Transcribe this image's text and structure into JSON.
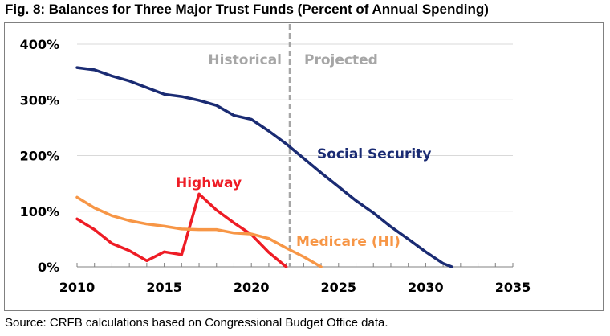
{
  "title": "Fig. 8: Balances for Three Major Trust Funds (Percent of Annual Spending)",
  "source": "Source: CRFB calculations based on Congressional Budget Office data.",
  "chart_data": {
    "type": "line",
    "title": "Fig. 8: Balances for Three Major Trust Funds (Percent of Annual Spending)",
    "xlim": [
      2010,
      2035
    ],
    "ylim": [
      0,
      400
    ],
    "x_ticks": [
      2010,
      2015,
      2020,
      2025,
      2030,
      2035
    ],
    "x_tick_labels": [
      "2010",
      "2015",
      "2020",
      "2025",
      "2030",
      "2035"
    ],
    "y_ticks": [
      0,
      100,
      200,
      300,
      400
    ],
    "y_tick_labels": [
      "0%",
      "100%",
      "200%",
      "300%",
      "400%"
    ],
    "grid": "horizontal",
    "divider_x": 2022.2,
    "annotations": {
      "historical": "Historical",
      "projected": "Projected"
    },
    "series": [
      {
        "name": "Social Security",
        "color": "#1a2b73",
        "x": [
          2010,
          2011,
          2012,
          2013,
          2014,
          2015,
          2016,
          2017,
          2018,
          2019,
          2020,
          2021,
          2022,
          2023,
          2024,
          2025,
          2026,
          2027,
          2028,
          2029,
          2030,
          2031,
          2031.5
        ],
        "y": [
          358,
          354,
          343,
          334,
          322,
          310,
          306,
          299,
          290,
          272,
          265,
          244,
          221,
          195,
          169,
          144,
          119,
          97,
          72,
          50,
          27,
          6,
          0
        ]
      },
      {
        "name": "Highway",
        "color": "#ee1c25",
        "x": [
          2010,
          2011,
          2012,
          2013,
          2014,
          2015,
          2016,
          2017,
          2018,
          2019,
          2020,
          2021,
          2022
        ],
        "y": [
          86,
          67,
          42,
          29,
          11,
          27,
          22,
          131,
          102,
          79,
          58,
          26,
          0
        ]
      },
      {
        "name": "Medicare (HI)",
        "color": "#f79646",
        "x": [
          2010,
          2011,
          2012,
          2013,
          2014,
          2015,
          2016,
          2017,
          2018,
          2019,
          2020,
          2021,
          2022,
          2023,
          2024
        ],
        "y": [
          125,
          106,
          92,
          83,
          77,
          73,
          68,
          67,
          67,
          61,
          59,
          51,
          34,
          18,
          0
        ]
      }
    ]
  }
}
